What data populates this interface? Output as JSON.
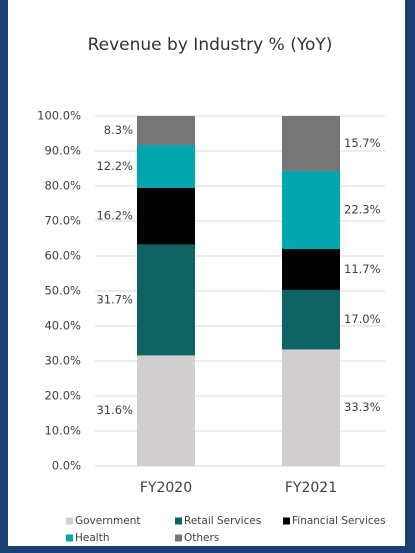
{
  "chart_data": {
    "type": "stacked-bar",
    "title": "Revenue by Industry % (YoY)",
    "categories": [
      "FY2020",
      "FY2021"
    ],
    "series": [
      {
        "name": "Government",
        "color": "#d0cece",
        "values": [
          31.6,
          33.3
        ],
        "value_labels": [
          "31.6%",
          "33.3%"
        ]
      },
      {
        "name": "Retail Services",
        "color": "#0e6262",
        "values": [
          31.7,
          17.0
        ],
        "value_labels": [
          "31.7%",
          "17.0%"
        ]
      },
      {
        "name": "Financial Services",
        "color": "#000000",
        "values": [
          16.2,
          11.7
        ],
        "value_labels": [
          "16.2%",
          "11.7%"
        ]
      },
      {
        "name": "Health",
        "color": "#00a6ae",
        "values": [
          12.2,
          22.3
        ],
        "value_labels": [
          "12.2%",
          "22.3%"
        ]
      },
      {
        "name": "Others",
        "color": "#767676",
        "values": [
          8.3,
          15.7
        ],
        "value_labels": [
          "8.3%",
          "15.7%"
        ]
      }
    ],
    "ylim": [
      0,
      100
    ],
    "yticks": [
      {
        "value": 0,
        "label": "0.0%"
      },
      {
        "value": 10,
        "label": "10.0%"
      },
      {
        "value": 20,
        "label": "20.0%"
      },
      {
        "value": 30,
        "label": "30.0%"
      },
      {
        "value": 40,
        "label": "40.0%"
      },
      {
        "value": 50,
        "label": "50.0%"
      },
      {
        "value": 60,
        "label": "60.0%"
      },
      {
        "value": 70,
        "label": "70.0%"
      },
      {
        "value": 80,
        "label": "80.0%"
      },
      {
        "value": 90,
        "label": "90.0%"
      },
      {
        "value": 100,
        "label": "100.0%"
      }
    ],
    "grid": true
  }
}
